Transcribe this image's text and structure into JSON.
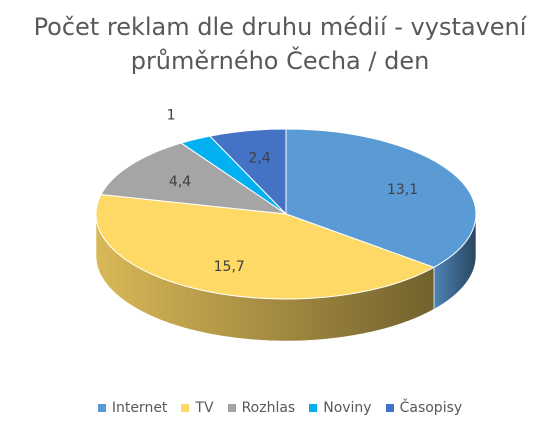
{
  "chart_data": {
    "type": "pie",
    "title_lines": [
      "Počet reklam dle druhu médií - vystavení",
      "průměrného Čecha / den"
    ],
    "categories": [
      "Internet",
      "TV",
      "Rozhlas",
      "Noviny",
      "Časopisy"
    ],
    "values": [
      13.1,
      15.7,
      4.4,
      1,
      2.4
    ],
    "value_labels": [
      "13,1",
      "15,7",
      "4,4",
      "1",
      "2,4"
    ],
    "colors": [
      "#5B9BD5",
      "#FFD966",
      "#A5A5A5",
      "#00B0F0",
      "#4472C4"
    ],
    "style": "3d-pie",
    "legend_position": "bottom"
  }
}
